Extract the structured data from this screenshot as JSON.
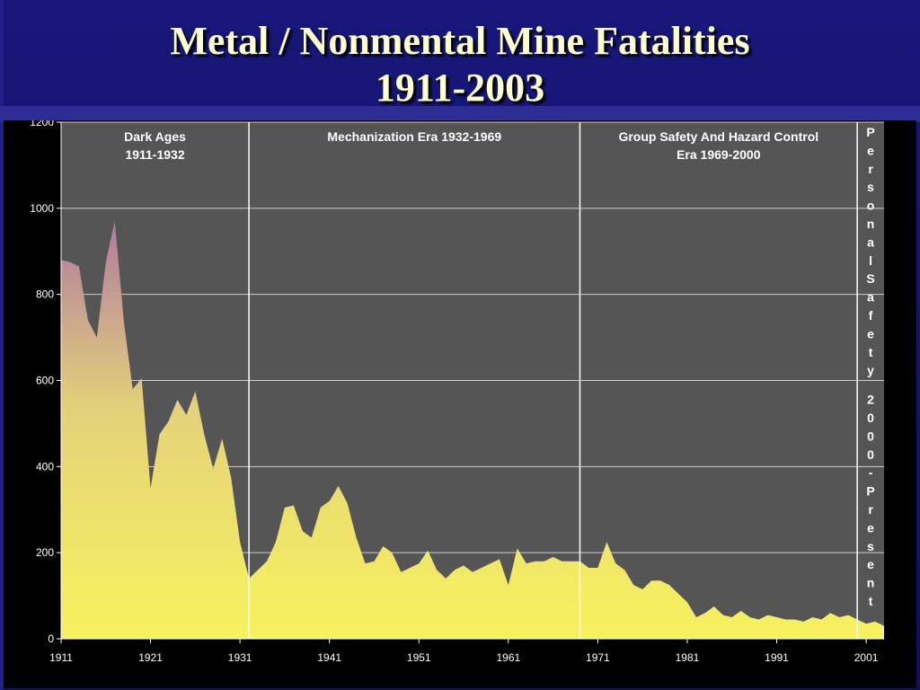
{
  "title_line1": "Metal / Nonmental Mine Fatalities",
  "title_line2": "1911-2003",
  "chart_data": {
    "type": "area",
    "title": "Metal / Nonmental Mine Fatalities 1911-2003",
    "xlabel": "",
    "ylabel": "",
    "ylim": [
      0,
      1200
    ],
    "xlim": [
      1911,
      2003
    ],
    "y_ticks": [
      "0",
      "200",
      "400",
      "600",
      "800",
      "1000",
      "1200"
    ],
    "x_ticks": [
      "1911",
      "1921",
      "1931",
      "1941",
      "1951",
      "1961",
      "1971",
      "1981",
      "1991",
      "2001"
    ],
    "grid": true,
    "series": [
      {
        "x": [
          1911,
          1912,
          1913,
          1914,
          1915,
          1916,
          1917,
          1918,
          1919,
          1920,
          1921,
          1922,
          1923,
          1924,
          1925,
          1926,
          1927,
          1928,
          1929,
          1930,
          1931,
          1932,
          1933,
          1934,
          1935,
          1936,
          1937,
          1938,
          1939,
          1940,
          1941,
          1942,
          1943,
          1944,
          1945,
          1946,
          1947,
          1948,
          1949,
          1950,
          1951,
          1952,
          1953,
          1954,
          1955,
          1956,
          1957,
          1958,
          1959,
          1960,
          1961,
          1962,
          1963,
          1964,
          1965,
          1966,
          1967,
          1968,
          1969,
          1970,
          1971,
          1972,
          1973,
          1974,
          1975,
          1976,
          1977,
          1978,
          1979,
          1980,
          1981,
          1982,
          1983,
          1984,
          1985,
          1986,
          1987,
          1988,
          1989,
          1990,
          1991,
          1992,
          1993,
          1994,
          1995,
          1996,
          1997,
          1998,
          1999,
          2000,
          2001,
          2002,
          2003
        ],
        "values": [
          880,
          875,
          865,
          740,
          700,
          875,
          970,
          740,
          580,
          605,
          350,
          475,
          505,
          555,
          520,
          575,
          475,
          395,
          465,
          375,
          225,
          140,
          160,
          180,
          225,
          305,
          310,
          250,
          235,
          305,
          320,
          355,
          315,
          235,
          175,
          180,
          215,
          200,
          155,
          165,
          175,
          205,
          160,
          140,
          160,
          170,
          155,
          165,
          175,
          185,
          125,
          210,
          175,
          180,
          180,
          190,
          180,
          180,
          180,
          165,
          165,
          225,
          175,
          160,
          125,
          115,
          135,
          135,
          125,
          105,
          85,
          50,
          60,
          75,
          55,
          50,
          65,
          50,
          45,
          55,
          50,
          45,
          45,
          40,
          50,
          45,
          60,
          50,
          55,
          45,
          35,
          40,
          30
        ]
      }
    ],
    "eras": [
      {
        "lines": [
          "Dark Ages",
          "1911-1932"
        ],
        "start": 1911,
        "end": 1932
      },
      {
        "lines": [
          "Mechanization Era 1932-1969"
        ],
        "start": 1932,
        "end": 1969
      },
      {
        "lines": [
          "Group Safety And Hazard Control",
          "Era 1969-2000"
        ],
        "start": 1969,
        "end": 2000
      },
      {
        "vertical_text": "Personal Safety 2000-Present",
        "start": 2000,
        "end": 2003
      }
    ],
    "colors": {
      "plot_bg": "#555555",
      "fill_top": "#b07aa0",
      "fill_mid": "#e4d27a",
      "fill_bottom": "#f7f25c",
      "grid": "#cfcfcf",
      "divider": "#ffffff"
    }
  }
}
